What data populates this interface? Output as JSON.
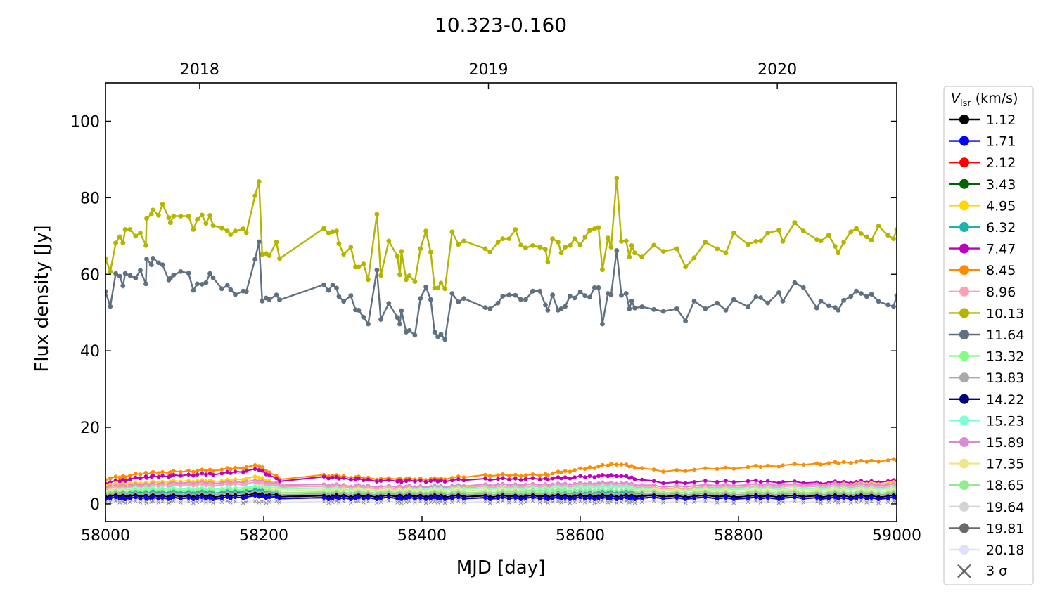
{
  "chart_data": {
    "type": "line",
    "title": "10.323-0.160",
    "xlabel": "MJD [day]",
    "ylabel": "Flux density [Jy]",
    "xlim": [
      58000,
      59000
    ],
    "ylim": [
      -4.6,
      110
    ],
    "xticks": [
      58000,
      58200,
      58400,
      58600,
      58800,
      59000
    ],
    "yticks": [
      0,
      20,
      40,
      60,
      80,
      100
    ],
    "top_axis": {
      "labels": [
        "2018",
        "2019",
        "2020"
      ],
      "mjd": [
        58119,
        58484,
        58849
      ]
    },
    "legend": {
      "position": "outside-right",
      "title_symbol": "V",
      "title_sub": "lsr",
      "title_unit": " (km/s)",
      "sigma_label": "3 σ"
    },
    "main_x": [
      58000,
      58006,
      58013,
      58018,
      58022,
      58025,
      58031,
      58038,
      58044,
      58051,
      58052,
      58058,
      58060,
      58067,
      58072,
      58080,
      58082,
      58086,
      58095,
      58105,
      58111,
      58116,
      58122,
      58127,
      58132,
      58136,
      58147,
      58154,
      58158,
      58164,
      58174,
      58178,
      58189,
      58194,
      58198,
      58203,
      58207,
      58216,
      58220,
      58276,
      58282,
      58287,
      58292,
      58295,
      58301,
      58310,
      58316,
      58320,
      58326,
      58332,
      58343,
      58348,
      58358,
      58369,
      58372,
      58374,
      58380,
      58384,
      58391,
      58398,
      58405,
      58411,
      58416,
      58420,
      58424,
      58429,
      58438,
      58446,
      58453,
      58480,
      58486,
      58496,
      58502,
      58510,
      58518,
      58525,
      58531,
      58540,
      58549,
      58556,
      58559,
      58565,
      58572,
      58576,
      58581,
      58587,
      58593,
      58600,
      58606,
      58612,
      58618,
      58623,
      58628,
      58635,
      58639,
      58646,
      58652,
      58658,
      58662,
      58665,
      58669,
      58678,
      58693,
      58705,
      58722,
      58733,
      58744,
      58758,
      58773,
      58784,
      58794,
      58812,
      58822,
      58828,
      58837,
      58851,
      58856,
      58871,
      58882,
      58899,
      58904,
      58914,
      58922,
      58926,
      58933,
      58942,
      58949,
      58955,
      58962,
      58968,
      58977,
      58989,
      58996,
      59000
    ],
    "low_x": [
      58000,
      58050,
      58100,
      58150,
      58194,
      58220,
      58276,
      58350,
      58420,
      58480,
      58550,
      58646,
      58700,
      58800,
      58900,
      59000
    ],
    "series": [
      {
        "name": "1.12",
        "color": "#000000",
        "low": [
          2,
          2,
          2,
          2,
          2.5,
          2,
          2,
          2,
          2,
          2,
          2,
          2,
          2,
          2,
          2,
          2
        ]
      },
      {
        "name": "1.71",
        "color": "#0000ff",
        "low": [
          1.5,
          1.5,
          1.5,
          1.5,
          2,
          1.5,
          1.5,
          1.5,
          1.5,
          1.5,
          1.5,
          1.5,
          1.5,
          1.5,
          1.5,
          1.5
        ]
      },
      {
        "name": "2.12",
        "color": "#ff0000",
        "low": [
          1.5,
          1.5,
          1.5,
          1.5,
          2,
          1.5,
          1.5,
          1.5,
          1.5,
          1.5,
          1.5,
          1.5,
          1.5,
          1.5,
          1.5,
          1.5
        ]
      },
      {
        "name": "3.43",
        "color": "#006400",
        "low": [
          1.5,
          1.5,
          1.5,
          1.5,
          2,
          1.5,
          1.5,
          1.5,
          1.5,
          1.5,
          1.5,
          1.5,
          1.5,
          1.5,
          1.5,
          1.5
        ]
      },
      {
        "name": "4.95",
        "color": "#ffd700",
        "low": [
          5,
          5.5,
          6,
          6,
          7,
          5,
          5,
          4,
          4.5,
          4.5,
          4,
          4.5,
          4,
          4,
          5,
          5.5
        ]
      },
      {
        "name": "6.32",
        "color": "#20b2aa",
        "low": [
          2.5,
          3,
          3,
          3,
          3.5,
          2.5,
          2.5,
          2.5,
          2.5,
          2.5,
          2.5,
          3,
          2.5,
          2.5,
          2.5,
          2.5
        ]
      },
      {
        "name": "7.47",
        "color": "#bf00bf",
        "low": [
          5.5,
          7,
          7.5,
          8,
          9,
          6,
          7,
          6,
          6,
          6.5,
          6.5,
          7.5,
          5.5,
          6,
          5.5,
          6
        ]
      },
      {
        "name": "8.45",
        "color": "#ff8c00",
        "low": [
          6.5,
          8,
          8.5,
          9,
          10,
          6.5,
          7.5,
          6.5,
          6.5,
          7.5,
          7.5,
          10.5,
          8.5,
          9.5,
          10.5,
          11.5
        ]
      },
      {
        "name": "8.96",
        "color": "#ffa0b4",
        "low": [
          4,
          4.5,
          5,
          5,
          5.5,
          4.5,
          4.5,
          4,
          4,
          4.5,
          4.5,
          5,
          4,
          4.5,
          4.5,
          4.5
        ]
      },
      {
        "name": "10.13",
        "color": "#b5b500",
        "values": [
          64.1,
          60.7,
          68.2,
          69.8,
          68.2,
          71.7,
          71.7,
          70.0,
          70.8,
          67.5,
          74.6,
          75.7,
          76.8,
          75.4,
          78.3,
          74.8,
          73.5,
          75.2,
          75.2,
          75.2,
          71.7,
          74.3,
          75.5,
          73.3,
          75.4,
          72.8,
          72.1,
          71.3,
          70.4,
          71.3,
          71.9,
          70.9,
          80.5,
          84.2,
          65.2,
          65.4,
          64.9,
          68.4,
          64.1,
          72.0,
          70.8,
          71.1,
          71.3,
          68.0,
          65.2,
          67.1,
          61.9,
          61.9,
          62.7,
          58.6,
          75.7,
          59.7,
          68.7,
          64.7,
          59.9,
          66.0,
          58.6,
          59.6,
          58.1,
          66.7,
          71.3,
          65.8,
          56.4,
          56.4,
          57.7,
          56.2,
          71.1,
          67.8,
          68.7,
          66.7,
          65.8,
          68.4,
          69.3,
          69.3,
          71.7,
          67.6,
          66.9,
          67.5,
          67.1,
          66.5,
          63.2,
          69.3,
          68.4,
          65.6,
          67.1,
          67.5,
          69.3,
          67.6,
          69.7,
          71.5,
          71.9,
          72.2,
          61.2,
          69.5,
          67.1,
          85.1,
          68.6,
          68.7,
          64.5,
          67.5,
          65.6,
          64.5,
          67.6,
          66.0,
          66.7,
          61.9,
          64.3,
          68.4,
          66.7,
          65.6,
          70.8,
          67.8,
          68.6,
          68.7,
          70.8,
          71.5,
          68.6,
          73.5,
          71.3,
          69.1,
          68.7,
          70.2,
          67.3,
          65.6,
          68.4,
          71.1,
          72.0,
          70.6,
          69.8,
          68.9,
          72.6,
          70.2,
          69.3,
          71.7
        ]
      },
      {
        "name": "11.64",
        "color": "#5f7080",
        "values": [
          55.5,
          51.6,
          60.2,
          59.5,
          57,
          60.2,
          59.7,
          59,
          61,
          57.5,
          64,
          62.5,
          64.2,
          63,
          62.5,
          58.5,
          59,
          59.8,
          60.7,
          60.3,
          55.8,
          57.5,
          57.4,
          57.8,
          60.2,
          59.1,
          56.2,
          57.1,
          56,
          54.7,
          55.6,
          55.5,
          63.9,
          68.5,
          53,
          53.8,
          53.4,
          54.6,
          53.3,
          57.3,
          55.8,
          57.2,
          56.4,
          54.2,
          52.9,
          54.4,
          50.7,
          50.6,
          48.8,
          47,
          61.1,
          48.2,
          52.4,
          48.7,
          47,
          50.5,
          44.9,
          45.3,
          44.1,
          53.7,
          56.7,
          53.4,
          44.9,
          43.7,
          44.3,
          43,
          55,
          52.8,
          53.7,
          51.3,
          51,
          52.5,
          54.3,
          54.6,
          54.5,
          53.4,
          53.4,
          55.6,
          55.6,
          52,
          50.6,
          54.6,
          50.6,
          51,
          51.6,
          54.3,
          53.8,
          55.4,
          54.4,
          54,
          56.5,
          56.5,
          47,
          55,
          54.6,
          66.2,
          54.5,
          55,
          51,
          53,
          51.2,
          51.5,
          50.8,
          50.3,
          51,
          47.8,
          53,
          51,
          52.5,
          50.6,
          53.4,
          51.5,
          54.1,
          53.9,
          52.5,
          55.2,
          53,
          57.8,
          56.5,
          51.2,
          53,
          51.8,
          51.3,
          50.6,
          53.2,
          54.2,
          55.6,
          55,
          54.2,
          54.8,
          52.9,
          52,
          51.6,
          54.4
        ]
      },
      {
        "name": "13.32",
        "color": "#80ff80",
        "low": [
          3,
          3.5,
          3.5,
          3.5,
          4,
          3,
          3,
          3,
          3,
          3,
          3,
          3.5,
          3,
          3,
          3,
          3
        ]
      },
      {
        "name": "13.83",
        "color": "#a9a9a9",
        "low": [
          2.5,
          2.5,
          2.5,
          2.5,
          3,
          2.5,
          2.5,
          2.5,
          2.5,
          2.5,
          2.5,
          2.5,
          2.5,
          2.5,
          2.5,
          2.5
        ]
      },
      {
        "name": "14.22",
        "color": "#000080",
        "low": [
          2,
          2.5,
          2.5,
          2.5,
          3.5,
          2,
          2,
          2,
          2,
          2,
          2,
          2.5,
          2,
          2,
          2,
          2
        ]
      },
      {
        "name": "15.23",
        "color": "#7fffd4",
        "low": [
          3.5,
          4,
          4,
          4,
          4.5,
          4,
          4,
          3.5,
          4,
          4,
          4,
          4.5,
          3.5,
          4,
          4,
          4
        ]
      },
      {
        "name": "15.89",
        "color": "#da8ad6",
        "low": [
          4.5,
          5,
          5.5,
          5.5,
          6,
          5,
          5,
          4.5,
          4.5,
          5,
          5,
          5.5,
          4.5,
          5,
          5,
          5
        ]
      },
      {
        "name": "17.35",
        "color": "#f0e68c",
        "low": [
          3.5,
          3.5,
          3.5,
          3.5,
          4,
          3.5,
          3.5,
          3.5,
          3.5,
          3.5,
          3.5,
          3.5,
          3.5,
          3.5,
          3.5,
          3.5
        ]
      },
      {
        "name": "18.65",
        "color": "#90ee90",
        "low": [
          3,
          3,
          3,
          3,
          3.5,
          3,
          3,
          3,
          3,
          3,
          3.5,
          3.5,
          3,
          3,
          3,
          3
        ]
      },
      {
        "name": "19.64",
        "color": "#d3d3d3",
        "low": [
          1.5,
          1.5,
          1.5,
          1.5,
          2,
          1.5,
          1.5,
          1.5,
          1.5,
          1.5,
          1.5,
          1.5,
          1.5,
          1.5,
          1.5,
          1.5
        ]
      },
      {
        "name": "19.81",
        "color": "#696969",
        "low": [
          2.5,
          2.5,
          2.5,
          2.5,
          3,
          2,
          2.5,
          2.5,
          2.5,
          2.5,
          2.5,
          2.5,
          2.5,
          2.5,
          2.5,
          2.5
        ]
      },
      {
        "name": "20.18",
        "color": "#e0e0f8",
        "low": [
          0.5,
          0.5,
          0.5,
          0.5,
          0.5,
          0.5,
          0.5,
          0.5,
          0.5,
          0.5,
          0.5,
          0.5,
          0.5,
          0.5,
          0.5,
          0.5
        ]
      }
    ]
  }
}
